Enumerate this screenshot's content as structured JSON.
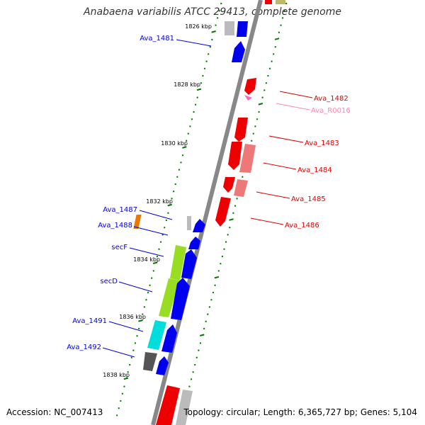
{
  "title": "Anabaena variabilis ATCC 29413, complete genome",
  "accession": "Accession: NC_007413",
  "topology": "Topology: circular; Length: 6,365,727 bp; Genes: 5,104",
  "colors": {
    "backbone": "#888888",
    "left_label": "#0000dd",
    "right_label": "#dd0000",
    "rna_label": "#ff88aa",
    "tick": "#007700",
    "blue_gene": "#0000ee",
    "red_gene": "#ee0000",
    "pink_gene": "#ee7777",
    "secF": "#99dd22",
    "secD": "#99dd22",
    "cyan_gene": "#00dddd",
    "dark_gray_gene": "#555555",
    "light_gray_gene": "#bbbbbb",
    "orange_gene": "#ee7700",
    "olive_gene": "#bbbb66",
    "rna_gene": "#ff66bb"
  },
  "scale_labels": [
    "1826 kbp",
    "1828 kbp",
    "1830 kbp",
    "1832 kbp",
    "1834 kbp",
    "1836 kbp",
    "1838 kbp"
  ],
  "left_genes": [
    "Ava_1481",
    "Ava_1487",
    "Ava_1488",
    "secF",
    "secD",
    "Ava_1491",
    "Ava_1492"
  ],
  "right_genes": [
    "Ava_1482",
    "Ava_R0016",
    "Ava_1483",
    "Ava_1484",
    "Ava_1485",
    "Ava_1486"
  ]
}
